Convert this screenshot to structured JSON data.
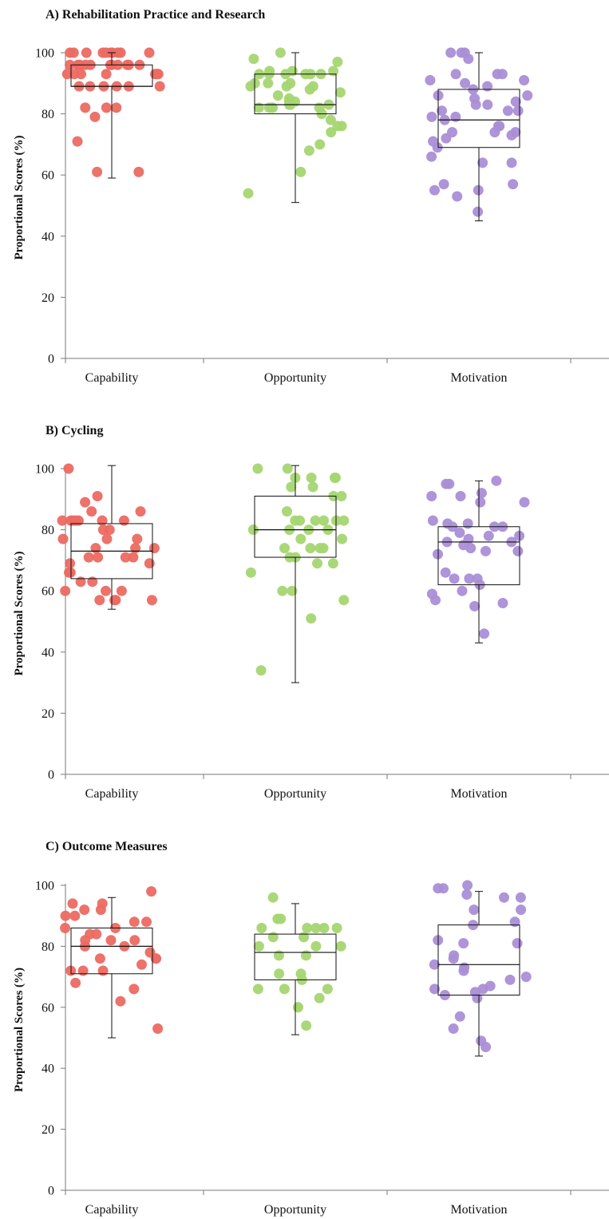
{
  "chart_data": [
    {
      "type": "scatter",
      "title": "A) Rehabilitation Practice and Research",
      "ylabel": "Proportional Scores (%)",
      "ylim": [
        0,
        100
      ],
      "yticks": [
        0,
        20,
        40,
        60,
        80,
        100
      ],
      "categories": [
        "Capability",
        "Opportunity",
        "Motivation"
      ],
      "colors": [
        "#ec6b63",
        "#a6d672",
        "#aa8fd6"
      ],
      "boxes": [
        {
          "min": 59,
          "q1": 89,
          "median": 89,
          "q3": 96,
          "max": 100
        },
        {
          "min": 51,
          "q1": 80,
          "median": 83,
          "q3": 93,
          "max": 100
        },
        {
          "min": 45,
          "q1": 69,
          "median": 78,
          "q3": 88,
          "max": 100
        }
      ],
      "points": [
        [
          100,
          100,
          100,
          100,
          100,
          100,
          100,
          100,
          100,
          100,
          96,
          96,
          96,
          96,
          96,
          96,
          96,
          96,
          96,
          96,
          96,
          93,
          93,
          93,
          93,
          93,
          93,
          93,
          89,
          89,
          89,
          89,
          89,
          89,
          82,
          82,
          82,
          79,
          71,
          61,
          61
        ],
        [
          100,
          98,
          97,
          94,
          94,
          94,
          93,
          93,
          93,
          93,
          93,
          93,
          90,
          90,
          90,
          89,
          89,
          89,
          88,
          87,
          86,
          85,
          84,
          84,
          83,
          83,
          83,
          82,
          82,
          82,
          82,
          82,
          80,
          78,
          76,
          76,
          74,
          70,
          68,
          61,
          54
        ],
        [
          100,
          100,
          100,
          98,
          93,
          93,
          93,
          91,
          91,
          90,
          89,
          88,
          86,
          86,
          85,
          84,
          83,
          83,
          81,
          81,
          81,
          79,
          79,
          78,
          76,
          76,
          74,
          74,
          74,
          73,
          72,
          71,
          69,
          66,
          64,
          64,
          57,
          57,
          55,
          55,
          53,
          48
        ]
      ]
    },
    {
      "type": "scatter",
      "title": "B) Cycling",
      "ylabel": "Proportional Scores (%)",
      "ylim": [
        0,
        100
      ],
      "yticks": [
        0,
        20,
        40,
        60,
        80,
        100
      ],
      "categories": [
        "Capability",
        "Opportunity",
        "Motivation"
      ],
      "colors": [
        "#ec6b63",
        "#a6d672",
        "#aa8fd6"
      ],
      "boxes": [
        {
          "min": 54,
          "q1": 64,
          "median": 73,
          "q3": 82,
          "max": 101
        },
        {
          "min": 30,
          "q1": 71,
          "median": 80,
          "q3": 91,
          "max": 101
        },
        {
          "min": 43,
          "q1": 62,
          "median": 76,
          "q3": 81,
          "max": 96
        }
      ],
      "points": [
        [
          100,
          91,
          89,
          86,
          86,
          83,
          83,
          83,
          83,
          83,
          83,
          83,
          80,
          80,
          77,
          77,
          77,
          74,
          74,
          74,
          71,
          71,
          71,
          71,
          69,
          69,
          66,
          66,
          63,
          63,
          60,
          60,
          60,
          57,
          57,
          57,
          57
        ],
        [
          100,
          100,
          97,
          97,
          97,
          97,
          94,
          94,
          91,
          91,
          86,
          83,
          83,
          83,
          83,
          83,
          83,
          80,
          80,
          80,
          80,
          77,
          77,
          74,
          74,
          74,
          74,
          71,
          71,
          69,
          69,
          66,
          60,
          60,
          57,
          51,
          34
        ],
        [
          96,
          95,
          95,
          92,
          91,
          91,
          89,
          89,
          83,
          82,
          82,
          81,
          81,
          81,
          79,
          78,
          78,
          77,
          76,
          76,
          75,
          74,
          73,
          73,
          72,
          66,
          64,
          64,
          64,
          62,
          60,
          59,
          57,
          56,
          55,
          46
        ]
      ]
    },
    {
      "type": "scatter",
      "title": "C) Outcome Measures",
      "ylabel": "Proportional Scores (%)",
      "ylim": [
        0,
        100
      ],
      "yticks": [
        0,
        20,
        40,
        60,
        80,
        100
      ],
      "categories": [
        "Capability",
        "Opportunity",
        "Motivation"
      ],
      "colors": [
        "#ec6b63",
        "#a6d672",
        "#aa8fd6"
      ],
      "boxes": [
        {
          "min": 50,
          "q1": 71,
          "median": 80,
          "q3": 86,
          "max": 96
        },
        {
          "min": 51,
          "q1": 69,
          "median": 78,
          "q3": 84,
          "max": 94
        },
        {
          "min": 44,
          "q1": 64,
          "median": 74,
          "q3": 87,
          "max": 98
        }
      ],
      "points": [
        [
          98,
          94,
          94,
          92,
          92,
          90,
          90,
          88,
          88,
          86,
          86,
          84,
          84,
          82,
          82,
          82,
          80,
          80,
          78,
          76,
          76,
          76,
          74,
          72,
          72,
          72,
          68,
          66,
          62,
          53
        ],
        [
          96,
          89,
          89,
          86,
          86,
          86,
          86,
          86,
          83,
          83,
          80,
          80,
          80,
          77,
          77,
          71,
          71,
          69,
          66,
          66,
          66,
          63,
          60,
          60,
          54
        ],
        [
          100,
          99,
          99,
          97,
          96,
          96,
          92,
          92,
          88,
          87,
          82,
          81,
          81,
          77,
          76,
          74,
          73,
          72,
          70,
          69,
          67,
          66,
          66,
          65,
          64,
          63,
          57,
          53,
          49,
          47
        ]
      ]
    }
  ]
}
